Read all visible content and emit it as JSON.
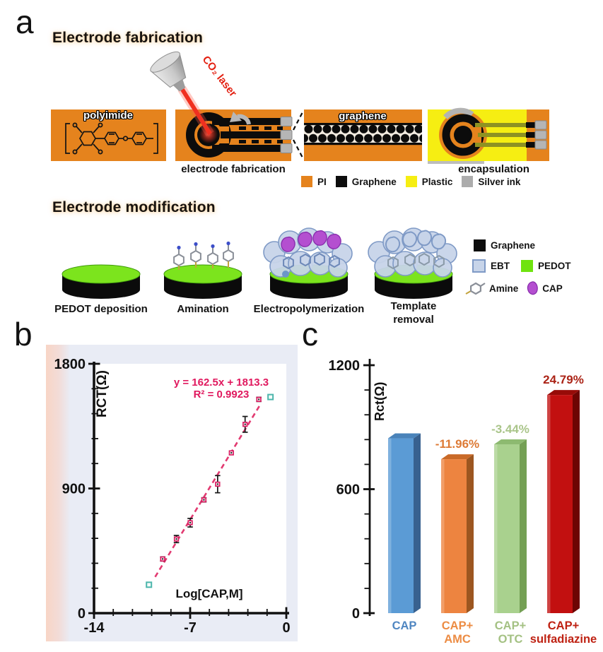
{
  "panel_a": {
    "label": "a",
    "fab_title": "Electrode fabrication",
    "laser_label": "CO₂ laser",
    "polyimide_label": "polyimide",
    "graphene_label": "graphene",
    "fab_caption": "electrode fabrication",
    "encap_caption": "encapsulation",
    "fab_legend": [
      {
        "label": "PI",
        "color": "#e5831d"
      },
      {
        "label": "Graphene",
        "color": "#0d0d0d"
      },
      {
        "label": "Plastic",
        "color": "#f6ee12"
      },
      {
        "label": "Silver ink",
        "color": "#acacac"
      }
    ],
    "mod_title": "Electrode modification",
    "mod_steps": [
      "PEDOT deposition",
      "Amination",
      "Electropolymerization",
      "Template removal"
    ],
    "mod_legend": [
      {
        "label": "Graphene",
        "color": "#0d0d0d",
        "icon": "graphene-swatch"
      },
      {
        "label": "EBT",
        "color": "#c7d4e9",
        "border": "#7f9ac6",
        "icon": "ebt-swatch"
      },
      {
        "label": "PEDOT",
        "color": "#6fe30f",
        "icon": "pedot-swatch"
      },
      {
        "label": "Amine",
        "icon": "amine-icon"
      },
      {
        "label": "CAP",
        "color": "#b44fd0",
        "icon": "cap-icon"
      }
    ]
  },
  "panel_b": {
    "label": "b"
  },
  "panel_c": {
    "label": "c"
  },
  "chart_data": [
    {
      "type": "scatter",
      "panel": "b",
      "xlabel": "Log[CAP,M]",
      "ylabel": "RCT(Ω)",
      "annotation_line1": "y = 162.5x + 1813.3",
      "annotation_line2": "R² = 0.9923",
      "xlim": [
        -14,
        0
      ],
      "ylim": [
        0,
        1800
      ],
      "xticks": [
        -14,
        -7,
        0
      ],
      "yticks": [
        0,
        900,
        1800
      ],
      "x": [
        -9,
        -8,
        -7,
        -6,
        -5,
        -4,
        -3,
        -2
      ],
      "y": [
        391,
        535,
        653,
        818,
        931,
        1157,
        1363,
        1543
      ],
      "yerr": [
        15,
        26,
        31,
        15,
        62,
        10,
        57,
        15
      ],
      "fit": {
        "slope": 162.5,
        "intercept": 1813.3,
        "r2": 0.9923,
        "x_range": [
          -9.55,
          -1.92
        ]
      },
      "outliers": [
        {
          "x": -10.0,
          "y": 205
        },
        {
          "x": -1.15,
          "y": 1560
        }
      ],
      "colors": {
        "points": "#d81b60",
        "fit": "#e23a71",
        "outliers": "#4db6ac",
        "error": "#161616"
      }
    },
    {
      "type": "bar",
      "panel": "c",
      "ylabel": "Rct(Ω)",
      "ylim": [
        0,
        1200
      ],
      "yticks": [
        0,
        600,
        1200
      ],
      "categories": [
        [
          "CAP"
        ],
        [
          "CAP+",
          "AMC"
        ],
        [
          "CAP+",
          "OTC"
        ],
        [
          "CAP+",
          "sulfadiazine"
        ]
      ],
      "values": [
        846,
        745,
        817,
        1056
      ],
      "delta_labels": [
        "",
        "-11.96%",
        "-3.44%",
        "24.79%"
      ],
      "delta_colors": [
        "",
        "#dd7a35",
        "#aac58a",
        "#ab2316"
      ],
      "label_colors": [
        "#4f86c1",
        "#ec8c44",
        "#a4c183",
        "#bf2213"
      ],
      "bar_colors": [
        {
          "face": "#5b9bd5",
          "side": "#38618f",
          "top": "#4a83ba"
        },
        {
          "face": "#ed8440",
          "side": "#9c5620",
          "top": "#c96a28"
        },
        {
          "face": "#a9d18e",
          "side": "#74a054",
          "top": "#8dba70"
        },
        {
          "face": "#c21010",
          "side": "#6d0503",
          "top": "#970b08"
        }
      ]
    }
  ]
}
